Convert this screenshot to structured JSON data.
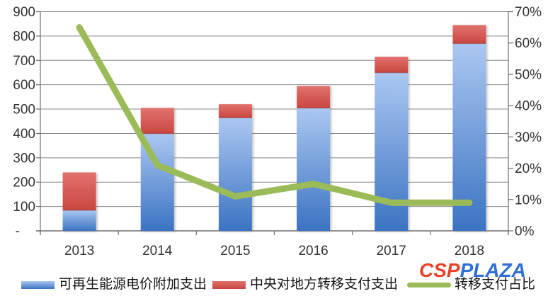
{
  "chart_data": {
    "type": "bar",
    "subtype": "stacked-bars-with-line-combo",
    "title": "",
    "categories": [
      "2013",
      "2014",
      "2015",
      "2016",
      "2017",
      "2018"
    ],
    "series": [
      {
        "name": "可再生能源电价附加支出",
        "type": "bar",
        "stack": "total",
        "axis": "left",
        "values": [
          85,
          400,
          465,
          505,
          650,
          770
        ]
      },
      {
        "name": "中央对地方转移支付支出",
        "type": "bar",
        "stack": "total",
        "axis": "left",
        "values": [
          155,
          105,
          55,
          90,
          65,
          75
        ]
      },
      {
        "name": "转移支付占比",
        "type": "line",
        "axis": "right",
        "unit": "%",
        "values": [
          65,
          21,
          11,
          15,
          9,
          9
        ]
      }
    ],
    "left_axis": {
      "min": 0,
      "max": 900,
      "step": 100,
      "tick_labels": [
        "900",
        "800",
        "700",
        "600",
        "500",
        "400",
        "300",
        "200",
        "100",
        "-"
      ]
    },
    "right_axis": {
      "min": 0,
      "max": 70,
      "step": 10,
      "tick_labels": [
        "70%",
        "60%",
        "50%",
        "40%",
        "30%",
        "20%",
        "10%",
        "0%"
      ]
    },
    "grid": true,
    "legend_position": "bottom"
  },
  "legend": {
    "items": [
      {
        "label": "可再生能源电价附加支出",
        "swatch": "bar-blue"
      },
      {
        "label": "中央对地方转移支付支出",
        "swatch": "bar-red"
      },
      {
        "label": "转移支付占比",
        "swatch": "line-green"
      }
    ]
  },
  "watermark": {
    "part1": "CSP",
    "part2": "PLAZA",
    "color1": "#e8432a",
    "color2": "#2f6fd6"
  },
  "colors": {
    "bar_blue_top": "#abc7f1",
    "bar_blue_bottom": "#3b73c2",
    "bar_red_top": "#e2716e",
    "bar_red_bottom": "#c8473f",
    "line_green": "#9bbb59",
    "gridline": "#878787",
    "axis": "#6f6f6f",
    "tick_text": "#333333"
  }
}
